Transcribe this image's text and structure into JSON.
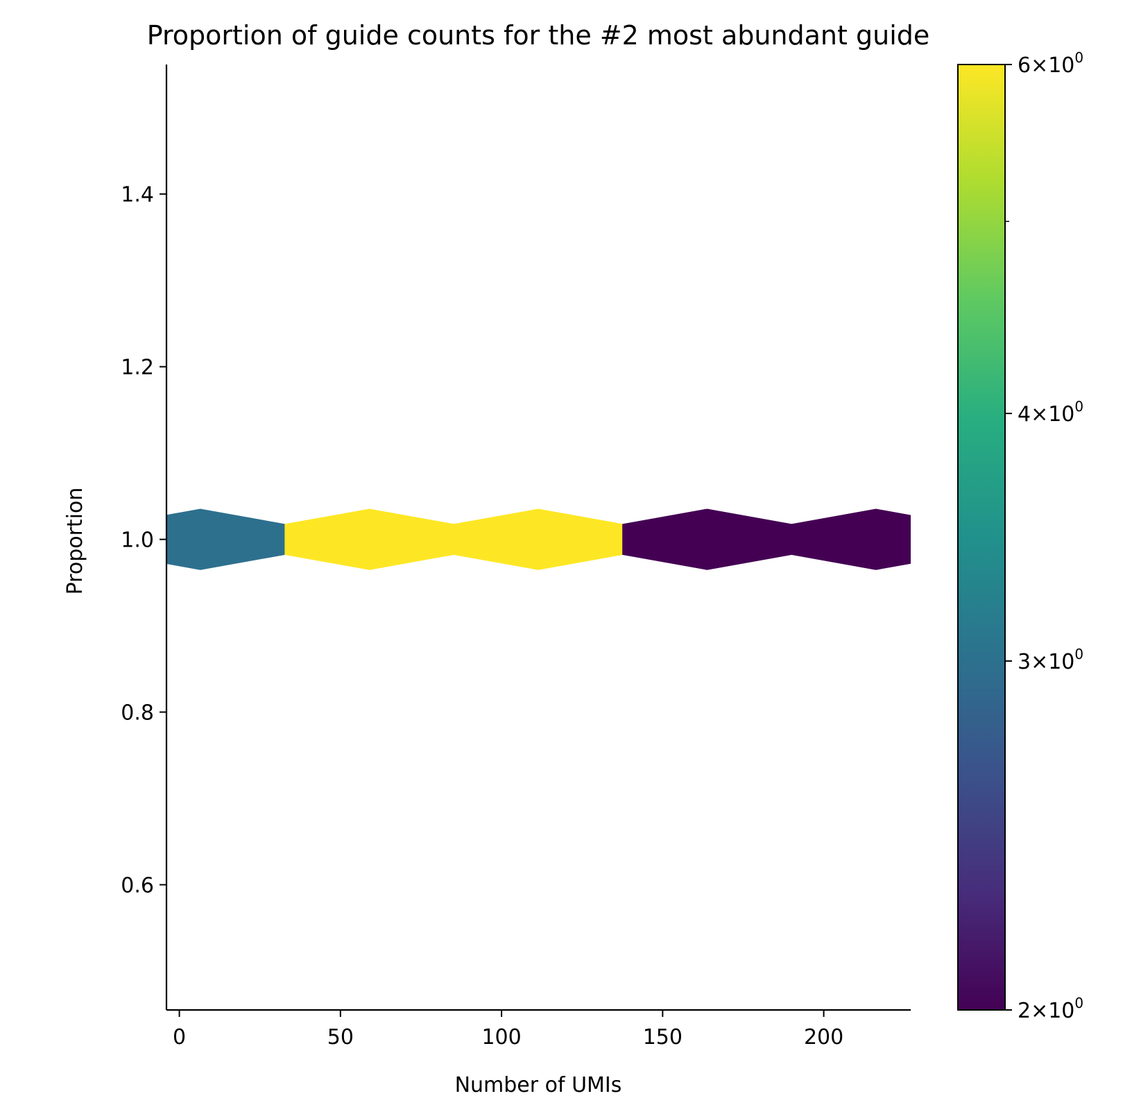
{
  "chart_data": {
    "type": "hexbin",
    "title": "Proportion of guide counts for the #2 most abundant guide",
    "xlabel": "Number of UMIs",
    "ylabel": "Proportion",
    "xlim": [
      -4,
      227
    ],
    "ylim": [
      0.455,
      1.55
    ],
    "xticks": [
      0,
      50,
      100,
      150,
      200
    ],
    "xtick_labels": [
      "0",
      "50",
      "100",
      "150",
      "200"
    ],
    "yticks": [
      0.6,
      0.8,
      1.0,
      1.2,
      1.4
    ],
    "ytick_labels": [
      "0.6",
      "0.8",
      "1.0",
      "1.2",
      "1.4"
    ],
    "hex_half_width": 26.2,
    "hex_half_height": 0.035,
    "bins": [
      {
        "x": 6.5,
        "y": 1.0,
        "count": 3
      },
      {
        "x": 59.0,
        "y": 1.0,
        "count": 6
      },
      {
        "x": 111.4,
        "y": 1.0,
        "count": 6
      },
      {
        "x": 163.8,
        "y": 1.0,
        "count": 2
      },
      {
        "x": 216.2,
        "y": 1.0,
        "count": 2
      }
    ],
    "colorbar": {
      "scale": "log",
      "colormap": "viridis",
      "range": [
        2,
        6
      ],
      "ticks": [
        {
          "value": 2,
          "mantissa": "2",
          "base": "10",
          "exponent": "0"
        },
        {
          "value": 3,
          "mantissa": "3",
          "base": "10",
          "exponent": "0"
        },
        {
          "value": 4,
          "mantissa": "4",
          "base": "10",
          "exponent": "0"
        },
        {
          "value": 6,
          "mantissa": "6",
          "base": "10",
          "exponent": "0"
        }
      ],
      "minor_ticks": [
        5
      ]
    },
    "spines": [
      "left",
      "bottom"
    ],
    "grid": false,
    "legend": false
  }
}
